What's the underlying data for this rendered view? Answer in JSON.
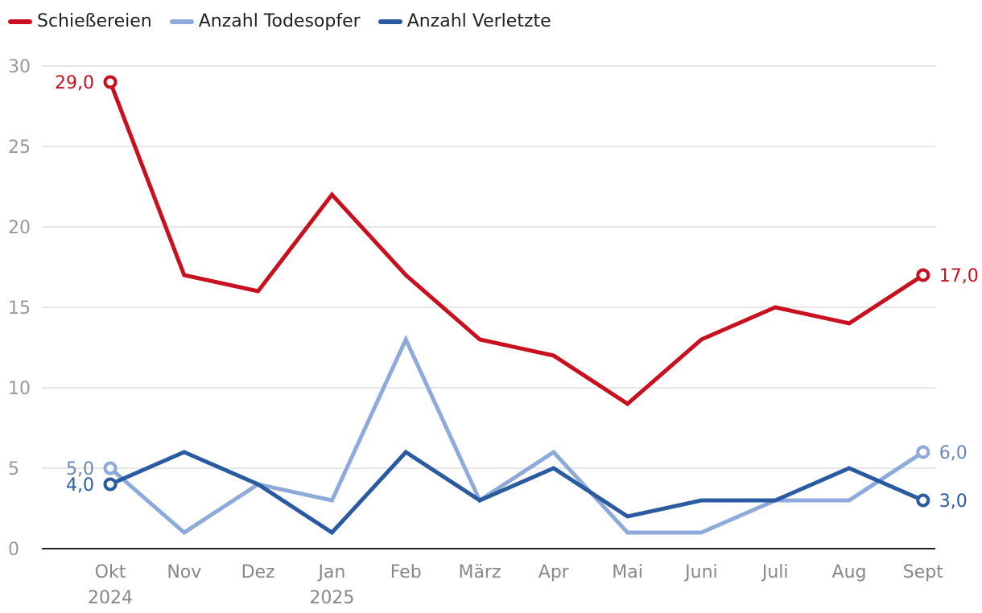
{
  "chart_data": {
    "type": "line",
    "categories": [
      "Okt",
      "Nov",
      "Dez",
      "Jan",
      "Feb",
      "März",
      "Apr",
      "Mai",
      "Juni",
      "Juli",
      "Aug",
      "Sept"
    ],
    "year_labels": [
      {
        "index": 0,
        "label": "2024"
      },
      {
        "index": 3,
        "label": "2025"
      }
    ],
    "ylim": [
      0,
      30
    ],
    "yticks": [
      0,
      5,
      10,
      15,
      20,
      25,
      30
    ],
    "series": [
      {
        "name": "Schießereien",
        "color": "#c8101e",
        "values": [
          29,
          17,
          16,
          22,
          17,
          13,
          12,
          9,
          13,
          15,
          14,
          17
        ],
        "first_label": "29,0",
        "last_label": "17,0"
      },
      {
        "name": "Anzahl Todesopfer",
        "color": "#8eaadb",
        "values": [
          5,
          1,
          4,
          3,
          13,
          3,
          6,
          1,
          1,
          3,
          3,
          6
        ],
        "first_label": "5,0",
        "last_label": "6,0",
        "label_color": "#6d88b5"
      },
      {
        "name": "Anzahl Verletzte",
        "color": "#2a5aa0",
        "values": [
          4,
          6,
          4,
          1,
          6,
          3,
          5,
          2,
          3,
          3,
          5,
          3
        ],
        "first_label": "4,0",
        "last_label": "3,0"
      }
    ]
  }
}
